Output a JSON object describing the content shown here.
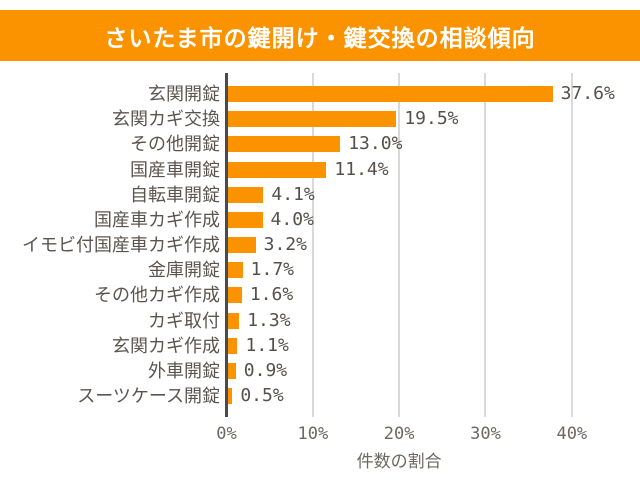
{
  "title": "さいたま市の鍵開け・鍵交換の相談傾向",
  "colors": {
    "accent_orange": "#FB9300",
    "banner_background": "#FB9300",
    "bar_fill": "#FB9300",
    "axis_line": "#4B4B4B",
    "gridline": "#D9D9D9",
    "category_text": "#5C554E",
    "value_text": "#57504A",
    "tick_text": "#6E675F",
    "title_text": "#FFFFFF",
    "background": "#FFFFFF"
  },
  "chart_data": {
    "type": "bar",
    "orientation": "horizontal",
    "title": "さいたま市の鍵開け・鍵交換の相談傾向",
    "categories": [
      "玄関開錠",
      "玄関カギ交換",
      "その他開錠",
      "国産車開錠",
      "自転車開錠",
      "国産車カギ作成",
      "イモビ付国産車カギ作成",
      "金庫開錠",
      "その他カギ作成",
      "カギ取付",
      "玄関カギ作成",
      "外車開錠",
      "スーツケース開錠"
    ],
    "values": [
      37.6,
      19.5,
      13.0,
      11.4,
      4.1,
      4.0,
      3.2,
      1.7,
      1.6,
      1.3,
      1.1,
      0.9,
      0.5
    ],
    "value_labels": [
      "37.6%",
      "19.5%",
      "13.0%",
      "11.4%",
      "4.1%",
      "4.0%",
      "3.2%",
      "1.7%",
      "1.6%",
      "1.3%",
      "1.1%",
      "0.9%",
      "0.5%"
    ],
    "xlabel": "件数の割合",
    "xlim": [
      0,
      40
    ],
    "xticks_values": [
      0,
      10,
      20,
      30,
      40
    ],
    "xticks_labels": [
      "0%",
      "10%",
      "20%",
      "30%",
      "40%"
    ],
    "grid": "vertical",
    "legend": "none"
  }
}
